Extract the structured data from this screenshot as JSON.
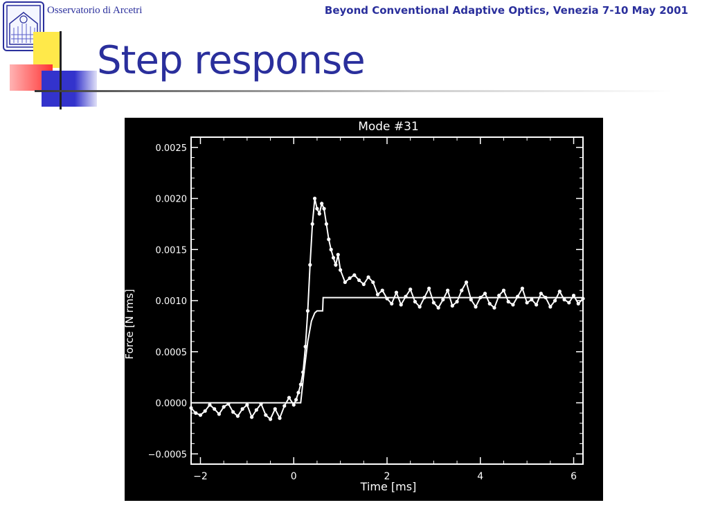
{
  "header": {
    "org": "Osservatorio di Arcetri",
    "conference": "Beyond Conventional Adaptive Optics, Venezia 7-10 May 2001"
  },
  "slide": {
    "title": "Step response"
  },
  "colors": {
    "accent": "#2a2f9c",
    "square_yellow": "#ffe94a",
    "square_red": "#ff3333",
    "square_blue": "#3333cc",
    "plot_bg": "#000000",
    "plot_fg": "#ffffff"
  },
  "logo": {
    "icon": "observatory-logo-icon"
  },
  "chart_data": {
    "type": "line",
    "title": "Mode #31",
    "xlabel": "Time [ms]",
    "ylabel": "Force [N rms]",
    "xlim": [
      -2.2,
      6.2
    ],
    "ylim": [
      -0.0006,
      0.0026
    ],
    "xticks": [
      -2,
      0,
      2,
      4,
      6
    ],
    "xtick_labels": [
      "−2",
      "0",
      "2",
      "4",
      "6"
    ],
    "yticks": [
      -0.0005,
      0.0,
      0.0005,
      0.001,
      0.0015,
      0.002,
      0.0025
    ],
    "ytick_labels": [
      "−0.0005",
      "0.0000",
      "0.0005",
      "0.0010",
      "0.0015",
      "0.0020",
      "0.0025"
    ],
    "grid": false,
    "series": [
      {
        "style": "step",
        "x": [
          -2.2,
          0.15,
          0.22,
          0.3,
          0.38,
          0.45,
          0.5,
          0.62,
          0.63,
          6.2
        ],
        "y": [
          0.0,
          0.0,
          0.0003,
          0.0006,
          0.0008,
          0.00088,
          0.0009,
          0.0009,
          0.00103,
          0.00103
        ]
      },
      {
        "style": "line-markers",
        "x": [
          -2.2,
          -2.1,
          -2.0,
          -1.9,
          -1.8,
          -1.7,
          -1.6,
          -1.5,
          -1.4,
          -1.3,
          -1.2,
          -1.1,
          -1.0,
          -0.9,
          -0.8,
          -0.7,
          -0.6,
          -0.5,
          -0.4,
          -0.3,
          -0.2,
          -0.1,
          0.0,
          0.05,
          0.1,
          0.15,
          0.2,
          0.25,
          0.3,
          0.35,
          0.4,
          0.45,
          0.5,
          0.55,
          0.6,
          0.65,
          0.7,
          0.75,
          0.8,
          0.85,
          0.9,
          0.95,
          1.0,
          1.1,
          1.2,
          1.3,
          1.4,
          1.5,
          1.6,
          1.7,
          1.8,
          1.9,
          2.0,
          2.1,
          2.2,
          2.3,
          2.4,
          2.5,
          2.6,
          2.7,
          2.8,
          2.9,
          3.0,
          3.1,
          3.2,
          3.3,
          3.4,
          3.5,
          3.6,
          3.7,
          3.8,
          3.9,
          4.0,
          4.1,
          4.2,
          4.3,
          4.4,
          4.5,
          4.6,
          4.7,
          4.8,
          4.9,
          5.0,
          5.1,
          5.2,
          5.3,
          5.4,
          5.5,
          5.6,
          5.7,
          5.8,
          5.9,
          6.0,
          6.1,
          6.2
        ],
        "y": [
          -5e-05,
          -0.0001,
          -0.00012,
          -8e-05,
          -2e-05,
          -6e-05,
          -0.00011,
          -4e-05,
          -1e-05,
          -9e-05,
          -0.00013,
          -6e-05,
          -2e-05,
          -0.00014,
          -7e-05,
          -1e-05,
          -0.00012,
          -0.00016,
          -6e-05,
          -0.00015,
          -3e-05,
          5e-05,
          -2e-05,
          3e-05,
          0.0001,
          0.00018,
          0.0003,
          0.00055,
          0.0009,
          0.00135,
          0.00175,
          0.002,
          0.0019,
          0.00185,
          0.00195,
          0.0019,
          0.00175,
          0.0016,
          0.0015,
          0.00142,
          0.00135,
          0.00145,
          0.0013,
          0.00118,
          0.00122,
          0.00125,
          0.0012,
          0.00116,
          0.00123,
          0.00118,
          0.00106,
          0.0011,
          0.00102,
          0.00097,
          0.00108,
          0.00096,
          0.00104,
          0.00111,
          0.00099,
          0.00094,
          0.00103,
          0.00112,
          0.00098,
          0.00093,
          0.00101,
          0.0011,
          0.00095,
          0.00099,
          0.0011,
          0.00118,
          0.00101,
          0.00094,
          0.00103,
          0.00107,
          0.00097,
          0.00093,
          0.00105,
          0.0011,
          0.00099,
          0.00096,
          0.00104,
          0.00112,
          0.00098,
          0.00101,
          0.00096,
          0.00107,
          0.00103,
          0.00094,
          0.001,
          0.00109,
          0.00101,
          0.00098,
          0.00105,
          0.00097,
          0.00102
        ]
      }
    ]
  }
}
